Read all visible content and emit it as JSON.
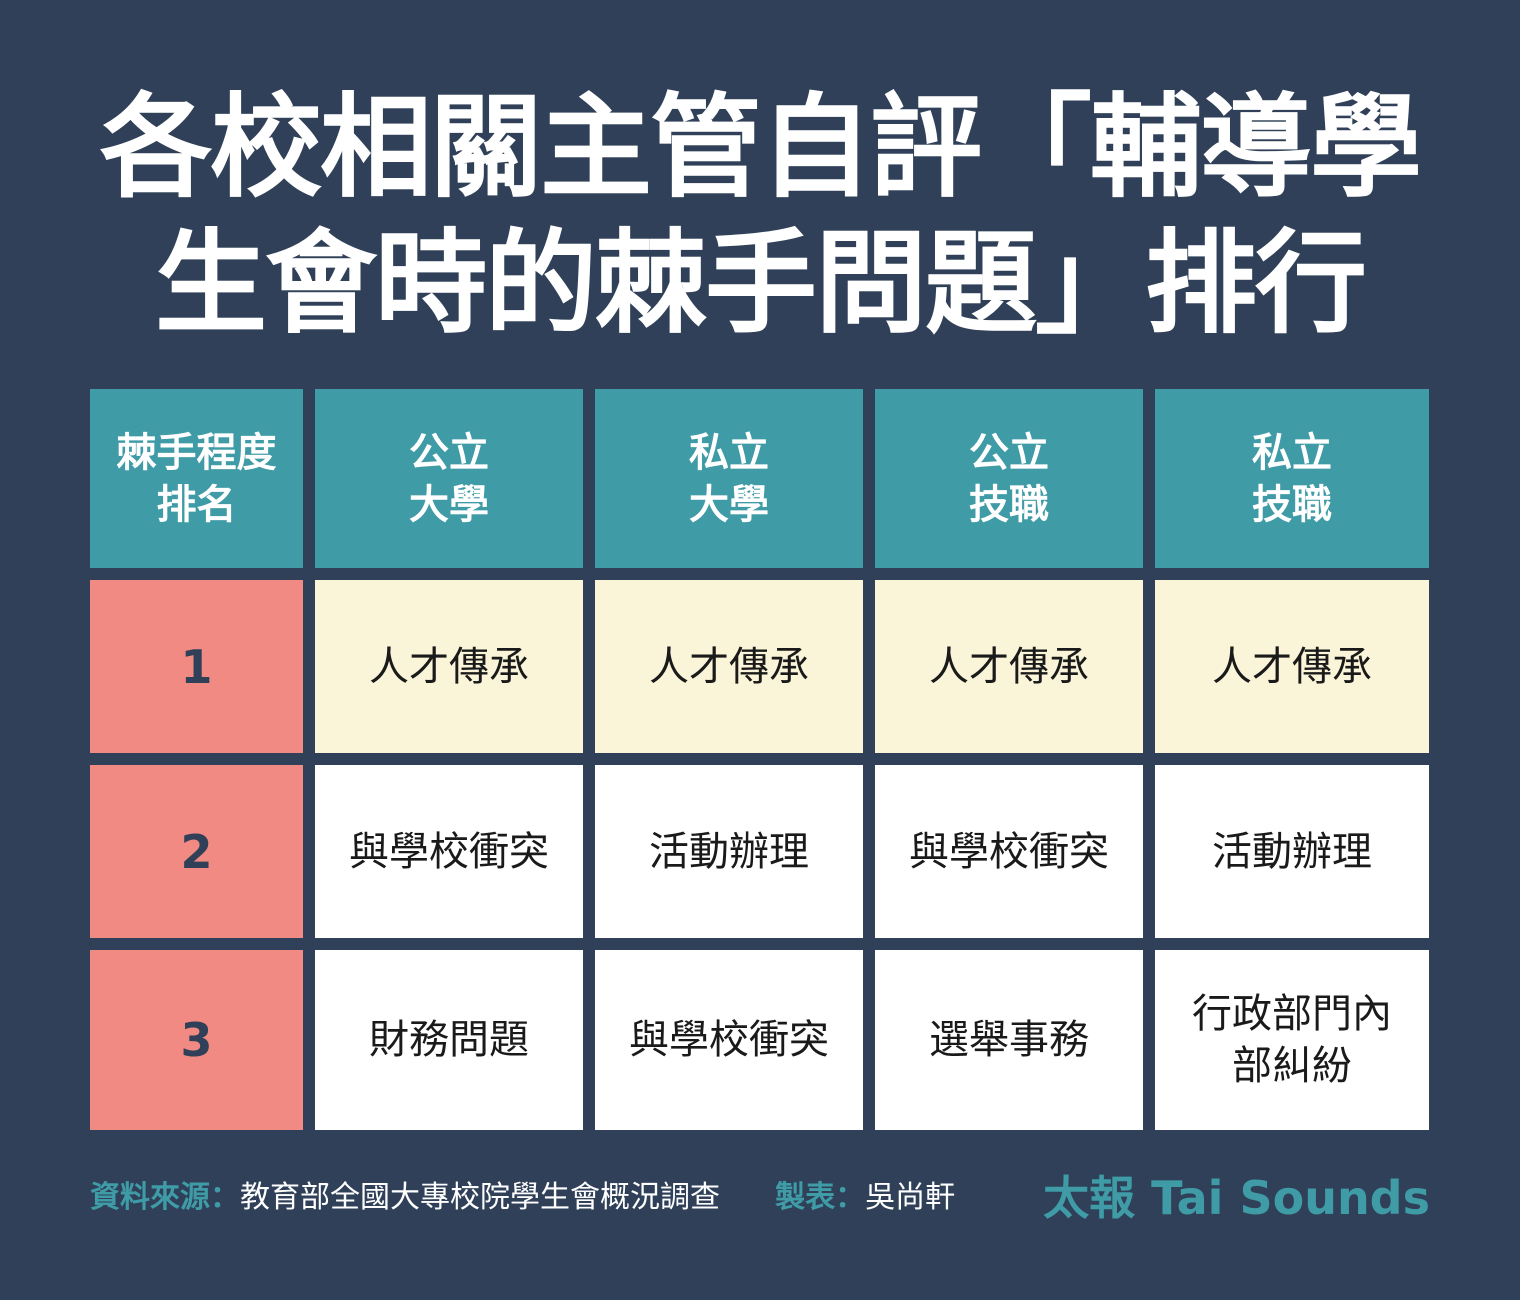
{
  "title": {
    "line1": "各校相關主管自評「輔導學",
    "line2": "生會時的棘手問題」排行"
  },
  "colors": {
    "background": "#2f4058",
    "header": "#3f9ba6",
    "rank": "#f08a82",
    "highlight_row": "#faf5d8",
    "body": "#ffffff"
  },
  "table": {
    "headers": [
      [
        "棘手程度",
        "排名"
      ],
      [
        "公立",
        "大學"
      ],
      [
        "私立",
        "大學"
      ],
      [
        "公立",
        "技職"
      ],
      [
        "私立",
        "技職"
      ]
    ],
    "rows": [
      {
        "rank": "1",
        "cells": [
          [
            "人才傳承"
          ],
          [
            "人才傳承"
          ],
          [
            "人才傳承"
          ],
          [
            "人才傳承"
          ]
        ]
      },
      {
        "rank": "2",
        "cells": [
          [
            "與學校衝突"
          ],
          [
            "活動辦理"
          ],
          [
            "與學校衝突"
          ],
          [
            "活動辦理"
          ]
        ]
      },
      {
        "rank": "3",
        "cells": [
          [
            "財務問題"
          ],
          [
            "與學校衝突"
          ],
          [
            "選舉事務"
          ],
          [
            "行政部門內",
            "部糾紛"
          ]
        ]
      }
    ]
  },
  "footer": {
    "source_label": "資料來源：",
    "source": "教育部全國大專校院學生會概況調查",
    "author_label": "製表：",
    "author": "吳尚軒",
    "brand": "太報 Tai Sounds"
  }
}
